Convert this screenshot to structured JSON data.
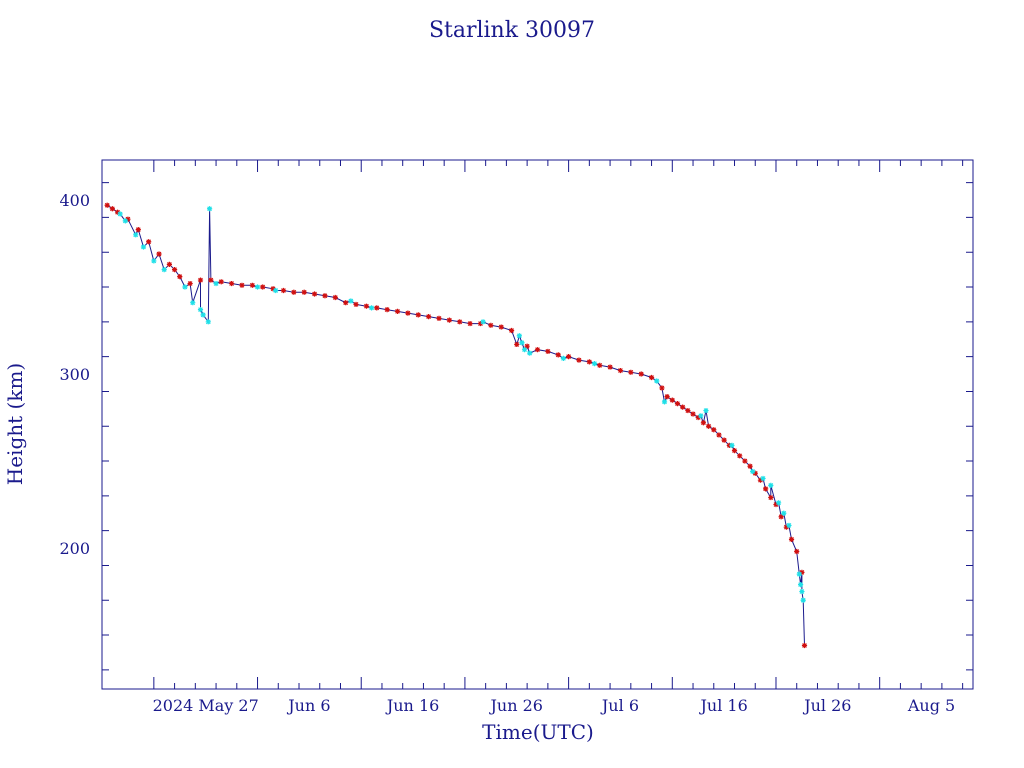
{
  "chart_data": {
    "type": "line",
    "title": "Starlink 30097",
    "xlabel": "Time(UTC)",
    "ylabel": "Height (km)",
    "x_range": [
      "2024-05-17",
      "2024-08-09"
    ],
    "ylim": [
      119,
      423
    ],
    "x_ticks": [
      {
        "date": "2024-05-27",
        "label": "2024 May 27"
      },
      {
        "date": "2024-06-06",
        "label": "Jun  6"
      },
      {
        "date": "2024-06-16",
        "label": "Jun 16"
      },
      {
        "date": "2024-06-26",
        "label": "Jun 26"
      },
      {
        "date": "2024-07-06",
        "label": "Jul  6"
      },
      {
        "date": "2024-07-16",
        "label": "Jul 16"
      },
      {
        "date": "2024-07-26",
        "label": "Jul 26"
      },
      {
        "date": "2024-08-05",
        "label": "Aug  5"
      }
    ],
    "y_ticks": [
      200,
      300,
      400
    ],
    "grid": false,
    "colors": {
      "line": "#1a1a8c",
      "frame": "#1a1a8c",
      "series_red": "#d01010",
      "series_cyan": "#20e0e8"
    },
    "series": [
      {
        "marker_color": "red",
        "x": [
          "2024-05-17T12:00",
          "2024-05-18T00:00",
          "2024-05-18T12:00",
          "2024-05-19T12:00",
          "2024-05-20T12:00",
          "2024-05-21T12:00",
          "2024-05-22T12:00",
          "2024-05-23T12:00",
          "2024-05-24T00:00",
          "2024-05-24T12:00",
          "2024-05-25T12:00",
          "2024-05-26T12:00",
          "2024-05-27T12:00",
          "2024-05-28T12:00",
          "2024-05-29T12:00",
          "2024-05-30T12:00",
          "2024-05-31T12:00",
          "2024-06-01T12:00",
          "2024-06-02T12:00",
          "2024-06-03T12:00",
          "2024-06-04T12:00",
          "2024-06-05T12:00",
          "2024-06-06T12:00",
          "2024-06-07T12:00",
          "2024-06-08T12:00",
          "2024-06-09T12:00",
          "2024-06-10T12:00",
          "2024-06-11T12:00",
          "2024-06-12T12:00",
          "2024-06-13T12:00",
          "2024-06-14T12:00",
          "2024-06-15T12:00",
          "2024-06-16T12:00",
          "2024-06-17T12:00",
          "2024-06-18T12:00",
          "2024-06-19T12:00",
          "2024-06-20T12:00",
          "2024-06-21T12:00",
          "2024-06-22T12:00",
          "2024-06-23T12:00",
          "2024-06-24T12:00",
          "2024-06-25T12:00",
          "2024-06-26T00:00",
          "2024-06-27T00:00",
          "2024-06-28T00:00",
          "2024-06-29T00:00",
          "2024-06-30T00:00",
          "2024-07-01T00:00",
          "2024-07-02T00:00",
          "2024-07-03T00:00",
          "2024-07-04T00:00",
          "2024-07-05T00:00",
          "2024-07-06T00:00",
          "2024-07-07T00:00",
          "2024-07-08T00:00",
          "2024-07-09T00:00",
          "2024-07-10T00:00",
          "2024-07-10T12:00",
          "2024-07-11T00:00",
          "2024-07-11T12:00",
          "2024-07-12T00:00",
          "2024-07-12T12:00",
          "2024-07-13T00:00",
          "2024-07-13T12:00",
          "2024-07-14T00:00",
          "2024-07-14T12:00",
          "2024-07-15T00:00",
          "2024-07-15T12:00",
          "2024-07-16T00:00",
          "2024-07-16T12:00",
          "2024-07-17T00:00",
          "2024-07-17T12:00",
          "2024-07-18T00:00",
          "2024-07-18T12:00",
          "2024-07-19T00:00",
          "2024-07-19T12:00",
          "2024-07-20T00:00",
          "2024-07-20T12:00",
          "2024-07-21T00:00",
          "2024-07-21T12:00",
          "2024-07-22T00:00",
          "2024-07-22T12:00",
          "2024-07-23T00:00",
          "2024-07-23T12:00",
          "2024-07-23T18:00"
        ],
        "y": [
          397,
          395,
          393,
          389,
          383,
          376,
          369,
          363,
          360,
          356,
          352,
          354,
          354,
          353,
          352,
          351,
          351,
          350,
          349,
          348,
          347,
          347,
          346,
          345,
          344,
          341,
          340,
          339,
          338,
          337,
          336,
          335,
          334,
          333,
          332,
          331,
          330,
          329,
          329,
          328,
          327,
          325,
          317,
          316,
          314,
          313,
          311,
          310,
          308,
          307,
          305,
          304,
          302,
          301,
          300,
          298,
          292,
          287,
          285,
          283,
          281,
          279,
          277,
          275,
          272,
          270,
          268,
          265,
          262,
          259,
          256,
          253,
          250,
          247,
          243,
          239,
          234,
          229,
          225,
          218,
          212,
          205,
          198,
          186,
          144
        ]
      },
      {
        "marker_color": "cyan",
        "x": [
          "2024-05-18T18:00",
          "2024-05-19T06:00",
          "2024-05-20T06:00",
          "2024-05-21T00:00",
          "2024-05-22T00:00",
          "2024-05-23T00:00",
          "2024-05-25T00:00",
          "2024-05-25T18:00",
          "2024-05-26T12:00",
          "2024-05-26T18:00",
          "2024-05-27T06:00",
          "2024-05-27T09:00",
          "2024-05-28T00:00",
          "2024-06-01T00:00",
          "2024-06-02T18:00",
          "2024-06-10T00:00",
          "2024-06-12T00:00",
          "2024-06-22T18:00",
          "2024-06-26T06:00",
          "2024-06-26T12:00",
          "2024-06-26T18:00",
          "2024-06-27T06:00",
          "2024-06-30T12:00",
          "2024-07-03T12:00",
          "2024-07-09T12:00",
          "2024-07-10T06:00",
          "2024-07-13T18:00",
          "2024-07-14T06:00",
          "2024-07-16T18:00",
          "2024-07-18T18:00",
          "2024-07-19T18:00",
          "2024-07-20T12:00",
          "2024-07-21T06:00",
          "2024-07-21T18:00",
          "2024-07-22T06:00",
          "2024-07-23T06:00",
          "2024-07-23T09:00",
          "2024-07-23T12:00",
          "2024-07-23T15:00"
        ],
        "y": [
          392,
          388,
          380,
          373,
          365,
          360,
          350,
          341,
          337,
          334,
          330,
          395,
          352,
          350,
          348,
          342,
          338,
          330,
          322,
          318,
          314,
          312,
          309,
          306,
          296,
          284,
          276,
          279,
          259,
          244,
          240,
          236,
          226,
          220,
          213,
          185,
          179,
          175,
          170
        ]
      }
    ]
  }
}
